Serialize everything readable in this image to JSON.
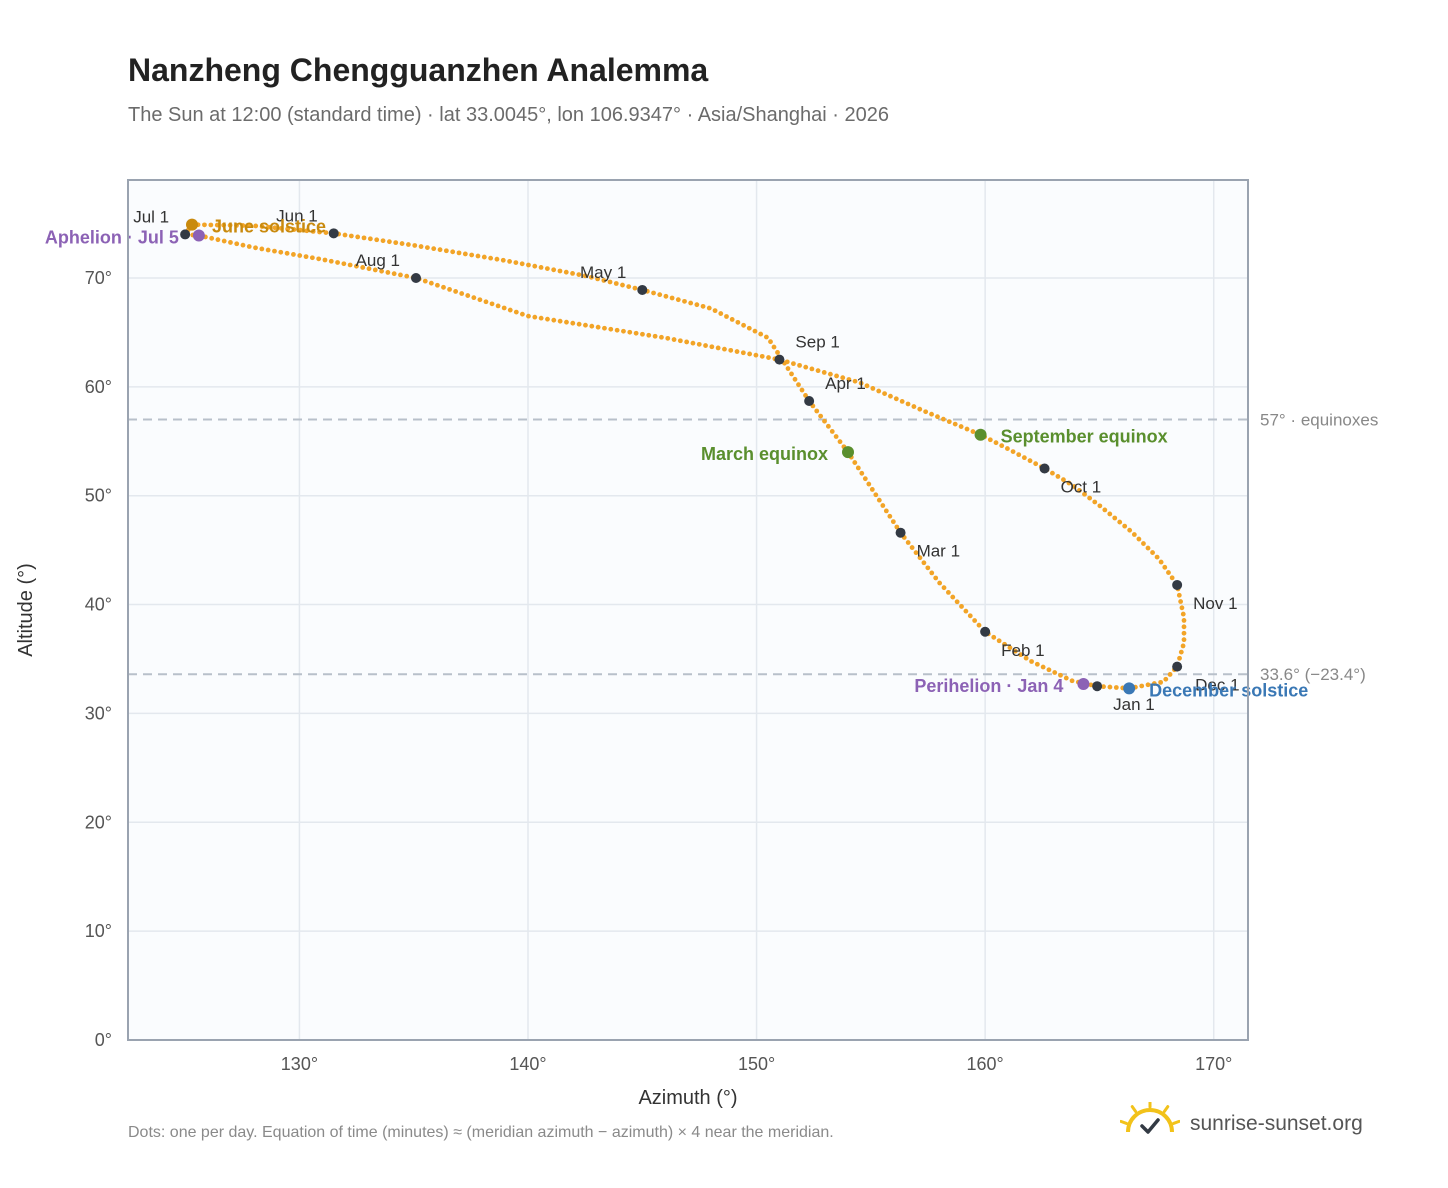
{
  "title": "Nanzheng Chengguanzhen Analemma",
  "subtitle": "The Sun at 12:00 (standard time) · lat 33.0045°, lon 106.9347° · Asia/Shanghai · 2026",
  "footnote": "Dots: one per day. Equation of time (minutes) ≈ (meridian azimuth − azimuth) × 4 near the meridian.",
  "brand": "sunrise-sunset.org",
  "colors": {
    "curve": "#f2a427",
    "month_dot": "#333a44",
    "equinox": "#5a8f2e",
    "june_solstice": "#c98a0e",
    "december_solstice": "#3a78b5",
    "apsis": "#8c62b5",
    "grid": "#e3e8ee",
    "plot_bg": "#fafcfe",
    "frame": "#9aa3b0",
    "ref_line": "#b8c0ca",
    "logo_sun": "#f2c21a",
    "logo_check": "#333a44"
  },
  "chart_data": {
    "type": "scatter",
    "title": "Nanzheng Chengguanzhen Analemma",
    "xlabel": "Azimuth (°)",
    "ylabel": "Altitude (°)",
    "xlim": [
      122.5,
      171.5
    ],
    "ylim": [
      0,
      79
    ],
    "x_ticks": [
      130,
      140,
      150,
      160,
      170
    ],
    "x_tick_labels": [
      "130°",
      "140°",
      "150°",
      "160°",
      "170°"
    ],
    "y_ticks": [
      0,
      10,
      20,
      30,
      40,
      50,
      60,
      70
    ],
    "y_tick_labels": [
      "0°",
      "10°",
      "20°",
      "30°",
      "40°",
      "50°",
      "60°",
      "70°"
    ],
    "grid": true,
    "series_note": "one dot per day",
    "path_points": [
      [
        164.9,
        32.5
      ],
      [
        166.3,
        32.3
      ],
      [
        167.8,
        32.9
      ],
      [
        168.4,
        34.3
      ],
      [
        168.7,
        36.5
      ],
      [
        168.7,
        38.8
      ],
      [
        168.4,
        41.8
      ],
      [
        167.6,
        44.2
      ],
      [
        166.4,
        46.7
      ],
      [
        165.0,
        49.1
      ],
      [
        163.8,
        51.0
      ],
      [
        162.6,
        52.5
      ],
      [
        161.0,
        54.3
      ],
      [
        159.8,
        55.6
      ],
      [
        157.3,
        57.8
      ],
      [
        154.5,
        60.4
      ],
      [
        151.0,
        62.5
      ],
      [
        146.0,
        64.5
      ],
      [
        140.0,
        66.5
      ],
      [
        135.1,
        70.0
      ],
      [
        131.0,
        71.7
      ],
      [
        128.0,
        72.8
      ],
      [
        125.6,
        73.9
      ],
      [
        125.0,
        74.0
      ],
      [
        125.3,
        74.9
      ],
      [
        128.0,
        74.8
      ],
      [
        131.5,
        74.1
      ],
      [
        135.0,
        73.0
      ],
      [
        139.0,
        71.6
      ],
      [
        142.5,
        70.2
      ],
      [
        145.0,
        68.9
      ],
      [
        148.0,
        67.2
      ],
      [
        150.5,
        64.5
      ],
      [
        152.3,
        58.7
      ],
      [
        154.0,
        54.0
      ],
      [
        156.3,
        46.6
      ],
      [
        158.0,
        42.0
      ],
      [
        160.0,
        37.5
      ],
      [
        162.0,
        34.8
      ],
      [
        163.8,
        33.0
      ],
      [
        164.9,
        32.5
      ]
    ],
    "month_markers": [
      {
        "label": "Jan 1",
        "az": 164.9,
        "alt": 32.5,
        "anchor": "below-right"
      },
      {
        "label": "Feb 1",
        "az": 160.0,
        "alt": 37.5,
        "anchor": "below-right"
      },
      {
        "label": "Mar 1",
        "az": 156.3,
        "alt": 46.6,
        "anchor": "below-right"
      },
      {
        "label": "Apr 1",
        "az": 152.3,
        "alt": 58.7,
        "anchor": "above-right"
      },
      {
        "label": "May 1",
        "az": 145.0,
        "alt": 68.9,
        "anchor": "above-left"
      },
      {
        "label": "Jun 1",
        "az": 131.5,
        "alt": 74.1,
        "anchor": "above-left"
      },
      {
        "label": "Jul 1",
        "az": 125.0,
        "alt": 74.0,
        "anchor": "above-left"
      },
      {
        "label": "Aug 1",
        "az": 135.1,
        "alt": 70.0,
        "anchor": "above-left"
      },
      {
        "label": "Sep 1",
        "az": 151.0,
        "alt": 62.5,
        "anchor": "above-right"
      },
      {
        "label": "Oct 1",
        "az": 162.6,
        "alt": 52.5,
        "anchor": "below-right"
      },
      {
        "label": "Nov 1",
        "az": 168.4,
        "alt": 41.8,
        "anchor": "below-right"
      },
      {
        "label": "Dec 1",
        "az": 168.4,
        "alt": 34.3,
        "anchor": "right"
      }
    ],
    "events": [
      {
        "label": "March equinox",
        "az": 154.0,
        "alt": 54.0,
        "color_key": "equinox",
        "side": "left"
      },
      {
        "label": "September equinox",
        "az": 159.8,
        "alt": 55.6,
        "color_key": "equinox",
        "side": "right"
      },
      {
        "label": "June solstice",
        "az": 125.3,
        "alt": 74.9,
        "color_key": "june_solstice",
        "side": "right"
      },
      {
        "label": "December solstice",
        "az": 166.3,
        "alt": 32.3,
        "color_key": "december_solstice",
        "side": "right"
      },
      {
        "label": "Aphelion · Jul 5",
        "az": 125.6,
        "alt": 73.9,
        "color_key": "apsis",
        "side": "left"
      },
      {
        "label": "Perihelion · Jan 4",
        "az": 164.3,
        "alt": 32.7,
        "color_key": "apsis",
        "side": "left"
      }
    ],
    "reference_lines": [
      {
        "alt": 57,
        "label": "57° · equinoxes"
      },
      {
        "alt": 33.6,
        "label": "33.6° (−23.4°)"
      }
    ]
  }
}
